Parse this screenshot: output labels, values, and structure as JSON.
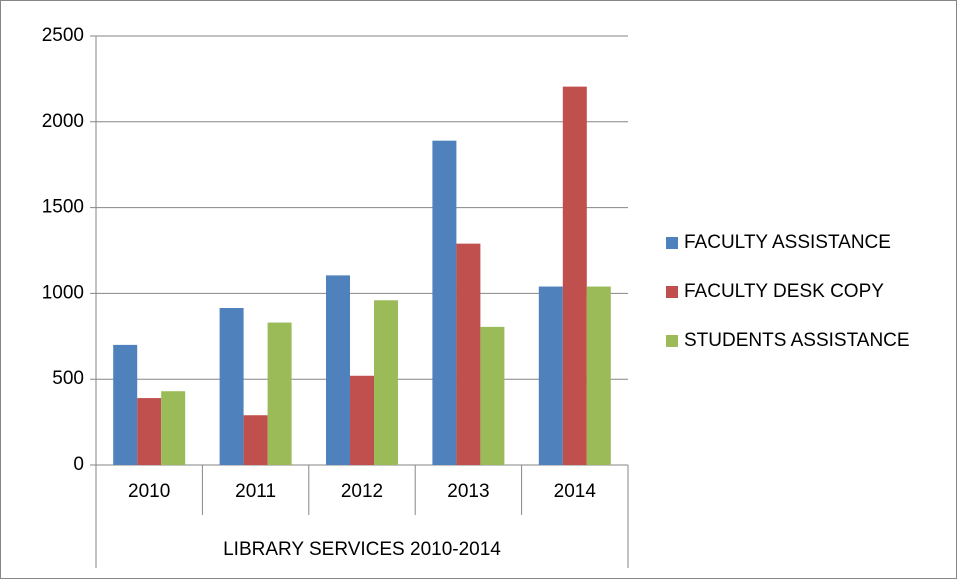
{
  "chart_data": {
    "type": "bar",
    "categories": [
      "2010",
      "2011",
      "2012",
      "2013",
      "2014"
    ],
    "series": [
      {
        "name": "FACULTY ASSISTANCE",
        "color": "#4f81bd",
        "values": [
          700,
          915,
          1105,
          1890,
          1040
        ]
      },
      {
        "name": "FACULTY DESK COPY",
        "color": "#c0504d",
        "values": [
          390,
          290,
          520,
          1290,
          2205
        ]
      },
      {
        "name": "STUDENTS ASSISTANCE",
        "color": "#9bbb59",
        "values": [
          430,
          830,
          960,
          805,
          1040
        ]
      }
    ],
    "xlabel": "LIBRARY SERVICES 2010-2014",
    "ylim": [
      0,
      2500
    ],
    "yticks": [
      0,
      500,
      1000,
      1500,
      2000,
      2500
    ],
    "grid": true,
    "legend": "right"
  }
}
